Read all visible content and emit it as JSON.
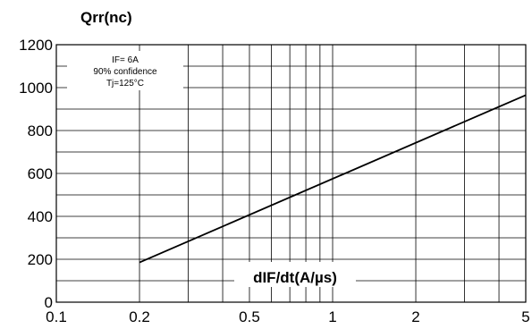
{
  "chart_data": {
    "type": "line",
    "title": "",
    "ylabel": "Qrr(nc)",
    "xlabel": "dIF/dt(A/µs)",
    "x_scale": "log",
    "xlim": [
      0.1,
      5
    ],
    "ylim": [
      0,
      1200
    ],
    "x_ticks": [
      0.1,
      0.2,
      0.5,
      1,
      2,
      5
    ],
    "x_tick_labels": [
      "0.1",
      "0.2",
      "0.5",
      "1",
      "2",
      "5"
    ],
    "y_ticks": [
      0,
      200,
      400,
      600,
      800,
      1000,
      1200
    ],
    "y_tick_labels": [
      "0",
      "200",
      "400",
      "600",
      "800",
      "1000",
      "1200"
    ],
    "grid": true,
    "annotations": [
      "IF= 6A",
      "90% confidence",
      "Tj=125°C"
    ],
    "series": [
      {
        "x": [
          0.2,
          5
        ],
        "y": [
          185,
          965
        ]
      }
    ]
  }
}
